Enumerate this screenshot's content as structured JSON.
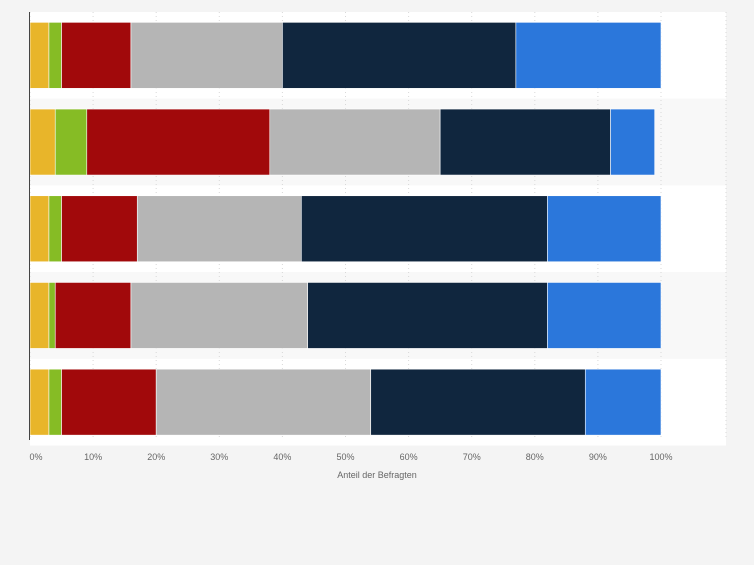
{
  "chart_data": {
    "type": "bar",
    "orientation": "horizontal",
    "stacked": true,
    "xlabel": "Anteil der Befragten",
    "x_ticks": [
      "0%",
      "10%",
      "20%",
      "30%",
      "40%",
      "50%",
      "60%",
      "70%",
      "80%",
      "90%",
      "100%"
    ],
    "xlim": [
      0,
      100
    ],
    "grid": true,
    "categories": [
      "",
      "",
      "",
      "",
      ""
    ],
    "series": [
      {
        "color": "#e8b52a",
        "values": [
          3,
          4,
          3,
          3,
          3
        ]
      },
      {
        "color": "#86bc25",
        "values": [
          2,
          5,
          2,
          1,
          2
        ]
      },
      {
        "color": "#a1090b",
        "values": [
          11,
          29,
          12,
          12,
          15
        ]
      },
      {
        "color": "#b5b5b5",
        "values": [
          24,
          27,
          26,
          28,
          34
        ]
      },
      {
        "color": "#10263e",
        "values": [
          37,
          27,
          39,
          38,
          34
        ]
      },
      {
        "color": "#2b77db",
        "values": [
          23,
          7,
          18,
          18,
          12
        ]
      }
    ]
  }
}
